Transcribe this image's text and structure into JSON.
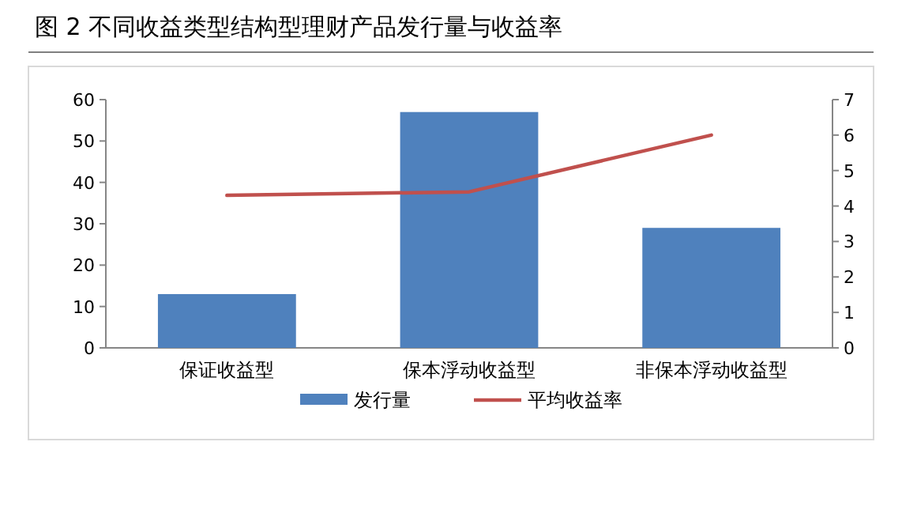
{
  "chart_data": {
    "type": "bar",
    "title": "图 2 不同收益类型结构型理财产品发行量与收益率",
    "categories": [
      "保证收益型",
      "保本浮动收益型",
      "非保本浮动收益型"
    ],
    "series": [
      {
        "name": "发行量",
        "color": "#4f81bd",
        "values": [
          13,
          57,
          29
        ]
      },
      {
        "name": "平均收益率",
        "type": "line",
        "axis": "y2",
        "color": "#c0504d",
        "values": [
          4.3,
          4.4,
          6.0
        ]
      }
    ],
    "ylim": [
      0,
      60
    ],
    "yticks": [
      0,
      10,
      20,
      30,
      40,
      50,
      60
    ],
    "y2lim": [
      0,
      7
    ],
    "y2ticks": [
      0,
      1,
      2,
      3,
      4,
      5,
      6,
      7
    ],
    "grid": false,
    "legend": "bottom",
    "marker": "none"
  }
}
